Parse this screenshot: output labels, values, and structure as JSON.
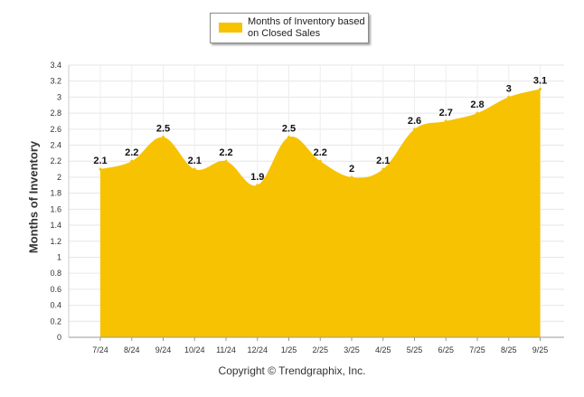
{
  "chart_data": {
    "type": "area",
    "categories": [
      "7/24",
      "8/24",
      "9/24",
      "10/24",
      "11/24",
      "12/24",
      "1/25",
      "2/25",
      "3/25",
      "4/25",
      "5/25",
      "6/25",
      "7/25",
      "8/25",
      "9/25"
    ],
    "series": [
      {
        "name": "Months of Inventory based on Closed Sales",
        "values": [
          2.1,
          2.2,
          2.5,
          2.1,
          2.2,
          1.9,
          2.5,
          2.2,
          2,
          2.1,
          2.6,
          2.7,
          2.8,
          3,
          3.1
        ],
        "color": "#F7C201"
      }
    ],
    "data_labels": [
      "2.1",
      "2.2",
      "2.5",
      "2.1",
      "2.2",
      "1.9",
      "2.5",
      "2.2",
      "2",
      "2.1",
      "2.6",
      "2.7",
      "2.8",
      "3",
      "3.1"
    ],
    "y_ticks": [
      "0",
      "0.2",
      "0.4",
      "0.6",
      "0.8",
      "1",
      "1.2",
      "1.4",
      "1.6",
      "1.8",
      "2",
      "2.2",
      "2.4",
      "2.6",
      "2.8",
      "3",
      "3.2",
      "3.4"
    ],
    "ylim": [
      0,
      3.4
    ],
    "ylabel": "Months of Inventory",
    "xlabel": "",
    "grid": true,
    "legend_position": "top-center"
  },
  "legend": {
    "label": "Months of Inventory based on Closed Sales"
  },
  "footer": {
    "copyright": "Copyright © Trendgraphix, Inc."
  }
}
